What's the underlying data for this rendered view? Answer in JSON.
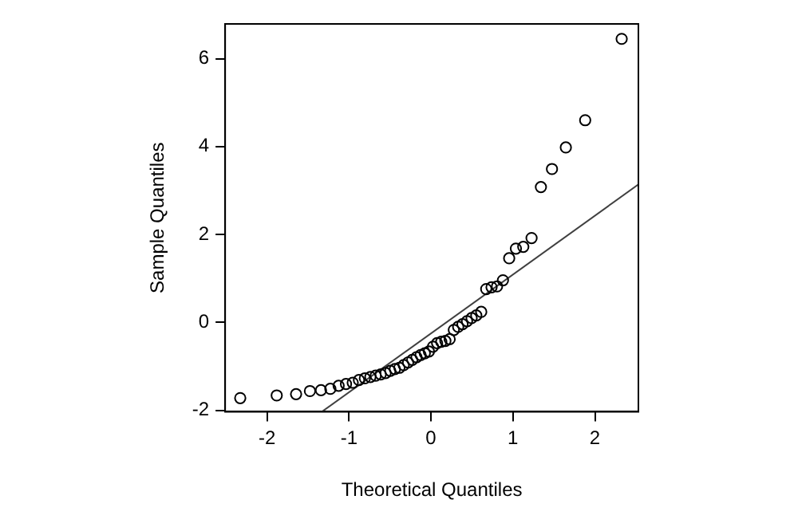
{
  "chart_data": {
    "type": "scatter",
    "xlabel": "Theoretical Quantiles",
    "ylabel": "Sample Quantiles",
    "xlim": [
      -2.51,
      2.53
    ],
    "ylim": [
      -2.03,
      6.79
    ],
    "xticks": [
      -2,
      -1,
      0,
      1,
      2
    ],
    "yticks": [
      -2,
      0,
      2,
      4,
      6
    ],
    "grid": false,
    "legend": false,
    "marker": "circle",
    "series": [
      {
        "color": "#000000",
        "x": [
          -2.326,
          -1.881,
          -1.645,
          -1.476,
          -1.341,
          -1.227,
          -1.126,
          -1.036,
          -0.954,
          -0.878,
          -0.806,
          -0.739,
          -0.674,
          -0.613,
          -0.553,
          -0.496,
          -0.44,
          -0.385,
          -0.332,
          -0.279,
          -0.228,
          -0.176,
          -0.126,
          -0.075,
          -0.025,
          0.025,
          0.075,
          0.126,
          0.176,
          0.228,
          0.279,
          0.332,
          0.385,
          0.44,
          0.496,
          0.553,
          0.613,
          0.674,
          0.739,
          0.806,
          0.878,
          0.954,
          1.036,
          1.126,
          1.227,
          1.341,
          1.476,
          1.645,
          1.881,
          2.326
        ],
        "values": [
          -1.72,
          -1.66,
          -1.63,
          -1.56,
          -1.54,
          -1.51,
          -1.44,
          -1.4,
          -1.37,
          -1.31,
          -1.27,
          -1.24,
          -1.21,
          -1.18,
          -1.15,
          -1.1,
          -1.06,
          -1.03,
          -0.97,
          -0.91,
          -0.85,
          -0.79,
          -0.74,
          -0.7,
          -0.66,
          -0.55,
          -0.47,
          -0.44,
          -0.42,
          -0.38,
          -0.17,
          -0.1,
          -0.04,
          0.03,
          0.1,
          0.16,
          0.24,
          0.76,
          0.8,
          0.82,
          0.96,
          1.46,
          1.68,
          1.72,
          1.92,
          3.08,
          3.49,
          3.98,
          4.6,
          6.45
        ]
      },
      {
        "type": "line",
        "color": "#404040",
        "x": [
          -1.33,
          2.53
        ],
        "values": [
          -2.03,
          3.14
        ],
        "marker": "none"
      }
    ]
  }
}
